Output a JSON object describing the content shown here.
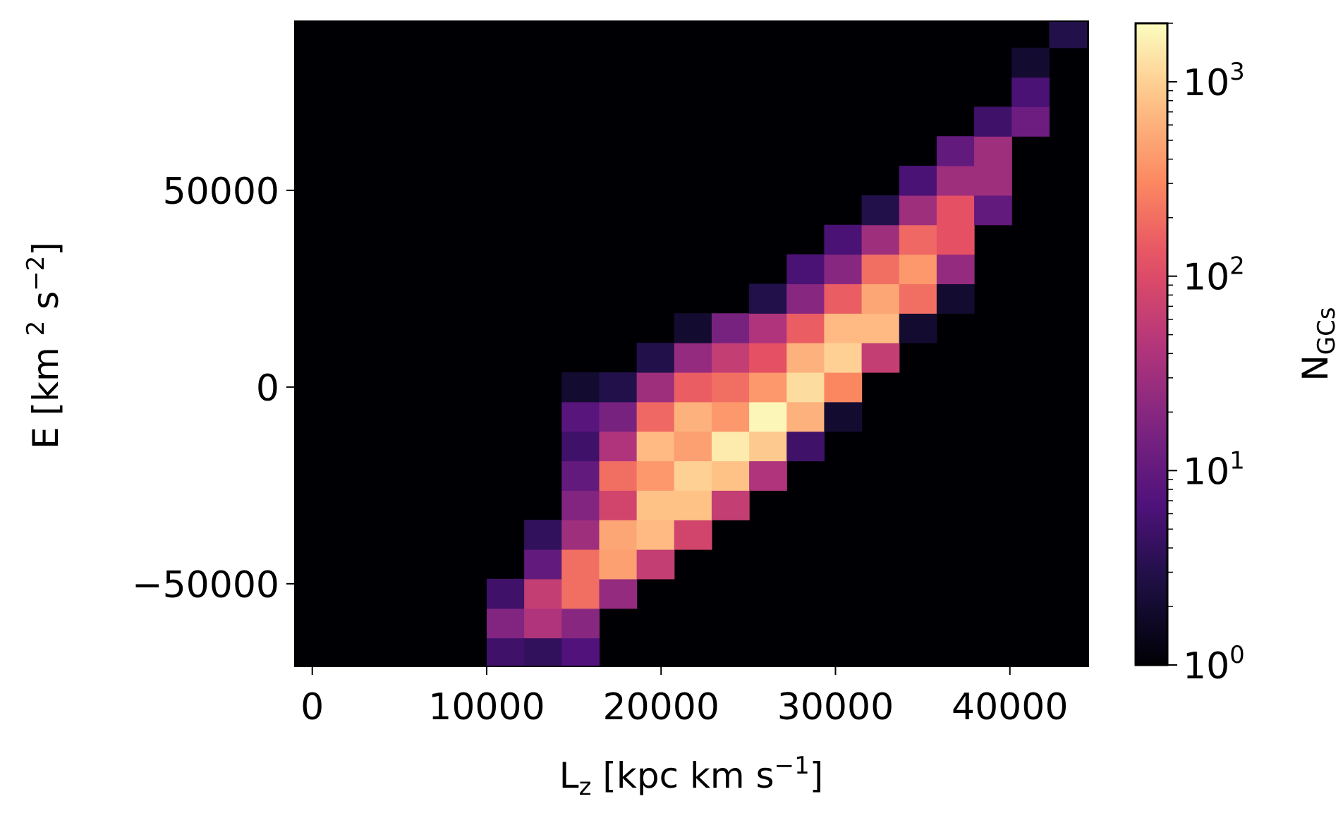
{
  "chart_data": {
    "type": "heatmap",
    "title": "",
    "xlabel": {
      "base": "L",
      "sub": "z",
      "text": " [kpc km s",
      "sup": "−1",
      "end": "]"
    },
    "ylabel": {
      "text": "E [km ",
      "sup1": "2",
      "mid": " s",
      "sup2": "−2",
      "end": "]"
    },
    "colorbar_label": {
      "base": "N",
      "sub": "GCs"
    },
    "colormap": "magma",
    "color_scale": "log",
    "color_range": [
      1,
      2000
    ],
    "xlim": [
      -1000,
      44500
    ],
    "ylim": [
      -71000,
      93000
    ],
    "x_ticks": [
      {
        "value": 0,
        "label": "0"
      },
      {
        "value": 10000,
        "label": "10000"
      },
      {
        "value": 20000,
        "label": "20000"
      },
      {
        "value": 30000,
        "label": "30000"
      },
      {
        "value": 40000,
        "label": "40000"
      }
    ],
    "y_ticks": [
      {
        "value": 50000,
        "label": "50000"
      },
      {
        "value": 0,
        "label": "0"
      },
      {
        "value": -50000,
        "label": "−50000"
      }
    ],
    "colorbar_ticks": [
      {
        "value": 1,
        "base": "10",
        "exp": "0"
      },
      {
        "value": 10,
        "base": "10",
        "exp": "1"
      },
      {
        "value": 100,
        "base": "10",
        "exp": "2"
      },
      {
        "value": 1000,
        "base": "10",
        "exp": "3"
      }
    ],
    "x_bin_edges": [
      10000,
      12150,
      14300,
      16450,
      18600,
      20750,
      22900,
      25050,
      27200,
      29350,
      31500,
      33650,
      35800,
      37950,
      40100,
      42250,
      44400
    ],
    "y_bin_edges": [
      -71000,
      -63750,
      -56250,
      -48750,
      -41250,
      -33750,
      -26250,
      -18750,
      -11250,
      -3750,
      3750,
      11250,
      18750,
      26250,
      33750,
      41250,
      48750,
      56250,
      63750,
      71250,
      78750,
      86250,
      93000
    ],
    "cells": [
      [
        0,
        0,
        5
      ],
      [
        1,
        0,
        4
      ],
      [
        2,
        0,
        7
      ],
      [
        0,
        1,
        18
      ],
      [
        1,
        1,
        40
      ],
      [
        2,
        1,
        20
      ],
      [
        0,
        2,
        5
      ],
      [
        1,
        2,
        60
      ],
      [
        2,
        2,
        200
      ],
      [
        3,
        2,
        25
      ],
      [
        1,
        3,
        10
      ],
      [
        2,
        3,
        200
      ],
      [
        3,
        3,
        450
      ],
      [
        4,
        3,
        60
      ],
      [
        1,
        4,
        4
      ],
      [
        2,
        4,
        30
      ],
      [
        3,
        4,
        500
      ],
      [
        4,
        4,
        700
      ],
      [
        5,
        4,
        80
      ],
      [
        2,
        5,
        18
      ],
      [
        3,
        5,
        80
      ],
      [
        4,
        5,
        800
      ],
      [
        5,
        5,
        800
      ],
      [
        6,
        5,
        60
      ],
      [
        2,
        6,
        10
      ],
      [
        3,
        6,
        200
      ],
      [
        4,
        6,
        400
      ],
      [
        5,
        6,
        1000
      ],
      [
        6,
        6,
        800
      ],
      [
        7,
        6,
        40
      ],
      [
        2,
        7,
        5
      ],
      [
        3,
        7,
        40
      ],
      [
        4,
        7,
        700
      ],
      [
        5,
        7,
        450
      ],
      [
        6,
        7,
        1500
      ],
      [
        7,
        7,
        900
      ],
      [
        8,
        7,
        5
      ],
      [
        2,
        8,
        8
      ],
      [
        3,
        8,
        15
      ],
      [
        4,
        8,
        180
      ],
      [
        5,
        8,
        600
      ],
      [
        6,
        8,
        400
      ],
      [
        7,
        8,
        1800
      ],
      [
        8,
        8,
        600
      ],
      [
        9,
        8,
        2
      ],
      [
        2,
        9,
        2
      ],
      [
        3,
        9,
        3
      ],
      [
        4,
        9,
        30
      ],
      [
        5,
        9,
        150
      ],
      [
        6,
        9,
        200
      ],
      [
        7,
        9,
        400
      ],
      [
        8,
        9,
        1200
      ],
      [
        9,
        9,
        300
      ],
      [
        4,
        10,
        3
      ],
      [
        5,
        10,
        25
      ],
      [
        6,
        10,
        60
      ],
      [
        7,
        10,
        120
      ],
      [
        8,
        10,
        600
      ],
      [
        9,
        10,
        1000
      ],
      [
        10,
        10,
        60
      ],
      [
        5,
        11,
        2
      ],
      [
        6,
        11,
        15
      ],
      [
        7,
        11,
        40
      ],
      [
        8,
        11,
        150
      ],
      [
        9,
        11,
        700
      ],
      [
        10,
        11,
        700
      ],
      [
        11,
        11,
        2
      ],
      [
        7,
        12,
        3
      ],
      [
        8,
        12,
        20
      ],
      [
        9,
        12,
        150
      ],
      [
        10,
        12,
        500
      ],
      [
        11,
        12,
        200
      ],
      [
        12,
        12,
        2
      ],
      [
        8,
        13,
        6
      ],
      [
        9,
        13,
        20
      ],
      [
        10,
        13,
        200
      ],
      [
        11,
        13,
        400
      ],
      [
        12,
        13,
        25
      ],
      [
        9,
        14,
        6
      ],
      [
        10,
        14,
        30
      ],
      [
        11,
        14,
        180
      ],
      [
        12,
        14,
        120
      ],
      [
        10,
        15,
        3
      ],
      [
        11,
        15,
        30
      ],
      [
        12,
        15,
        120
      ],
      [
        13,
        15,
        10
      ],
      [
        11,
        16,
        6
      ],
      [
        12,
        16,
        30
      ],
      [
        13,
        16,
        30
      ],
      [
        12,
        17,
        10
      ],
      [
        13,
        17,
        30
      ],
      [
        13,
        18,
        5
      ],
      [
        14,
        18,
        12
      ],
      [
        14,
        19,
        6
      ],
      [
        14,
        20,
        2
      ],
      [
        15,
        21,
        3
      ]
    ]
  }
}
